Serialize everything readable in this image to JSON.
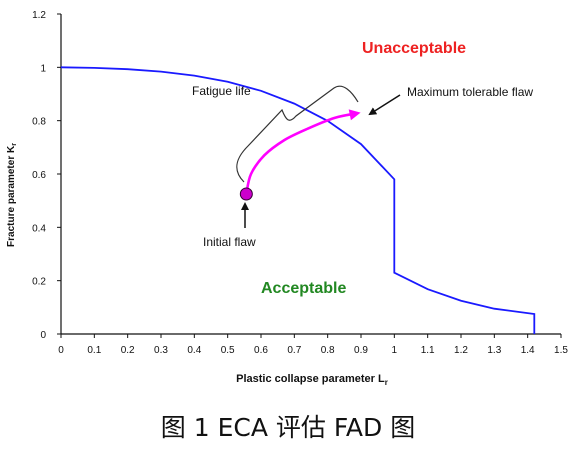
{
  "chart_data": {
    "type": "line",
    "title": "",
    "xlabel": "Plastic collapse parameter L",
    "xlabel_sub": "r",
    "ylabel": "Fracture parameter K",
    "ylabel_sub": "r",
    "xlim": [
      0,
      1.5
    ],
    "ylim": [
      0,
      1.2
    ],
    "x_ticks": [
      "0",
      "0.1",
      "0.2",
      "0.3",
      "0.4",
      "0.5",
      "0.6",
      "0.7",
      "0.8",
      "0.9",
      "1",
      "1.1",
      "1.2",
      "1.3",
      "1.4",
      "1.5"
    ],
    "y_ticks": [
      "0",
      "0.2",
      "0.4",
      "0.6",
      "0.8",
      "1",
      "1.2"
    ],
    "grid": false,
    "series": [
      {
        "color": "#1a1aff",
        "points": [
          [
            0.0,
            1.0
          ],
          [
            0.1,
            0.998
          ],
          [
            0.2,
            0.993
          ],
          [
            0.3,
            0.984
          ],
          [
            0.4,
            0.969
          ],
          [
            0.5,
            0.946
          ],
          [
            0.6,
            0.912
          ],
          [
            0.7,
            0.864
          ],
          [
            0.8,
            0.799
          ],
          [
            0.9,
            0.712
          ],
          [
            1.0,
            0.58
          ],
          [
            1.0,
            0.23
          ],
          [
            1.1,
            0.168
          ],
          [
            1.2,
            0.125
          ],
          [
            1.3,
            0.095
          ],
          [
            1.42,
            0.075
          ],
          [
            1.42,
            0.0
          ]
        ]
      },
      {
        "color": "#ff00ff",
        "points": [
          [
            0.556,
            0.525
          ],
          [
            0.57,
            0.6
          ],
          [
            0.61,
            0.67
          ],
          [
            0.67,
            0.727
          ],
          [
            0.74,
            0.77
          ],
          [
            0.82,
            0.81
          ],
          [
            0.89,
            0.828
          ]
        ]
      }
    ],
    "marker": {
      "x": 0.556,
      "y": 0.525,
      "color": "#cc00cc"
    },
    "annotations": {
      "unacceptable": {
        "text": "Unacceptable",
        "color": "#ee2222"
      },
      "acceptable": {
        "text": "Acceptable",
        "color": "#228822"
      },
      "fatigue_life": "Fatigue life",
      "max_flaw": "Maximum tolerable flaw",
      "initial_flaw": "Initial flaw"
    }
  },
  "caption": "图 1 ECA 评估 FAD 图"
}
